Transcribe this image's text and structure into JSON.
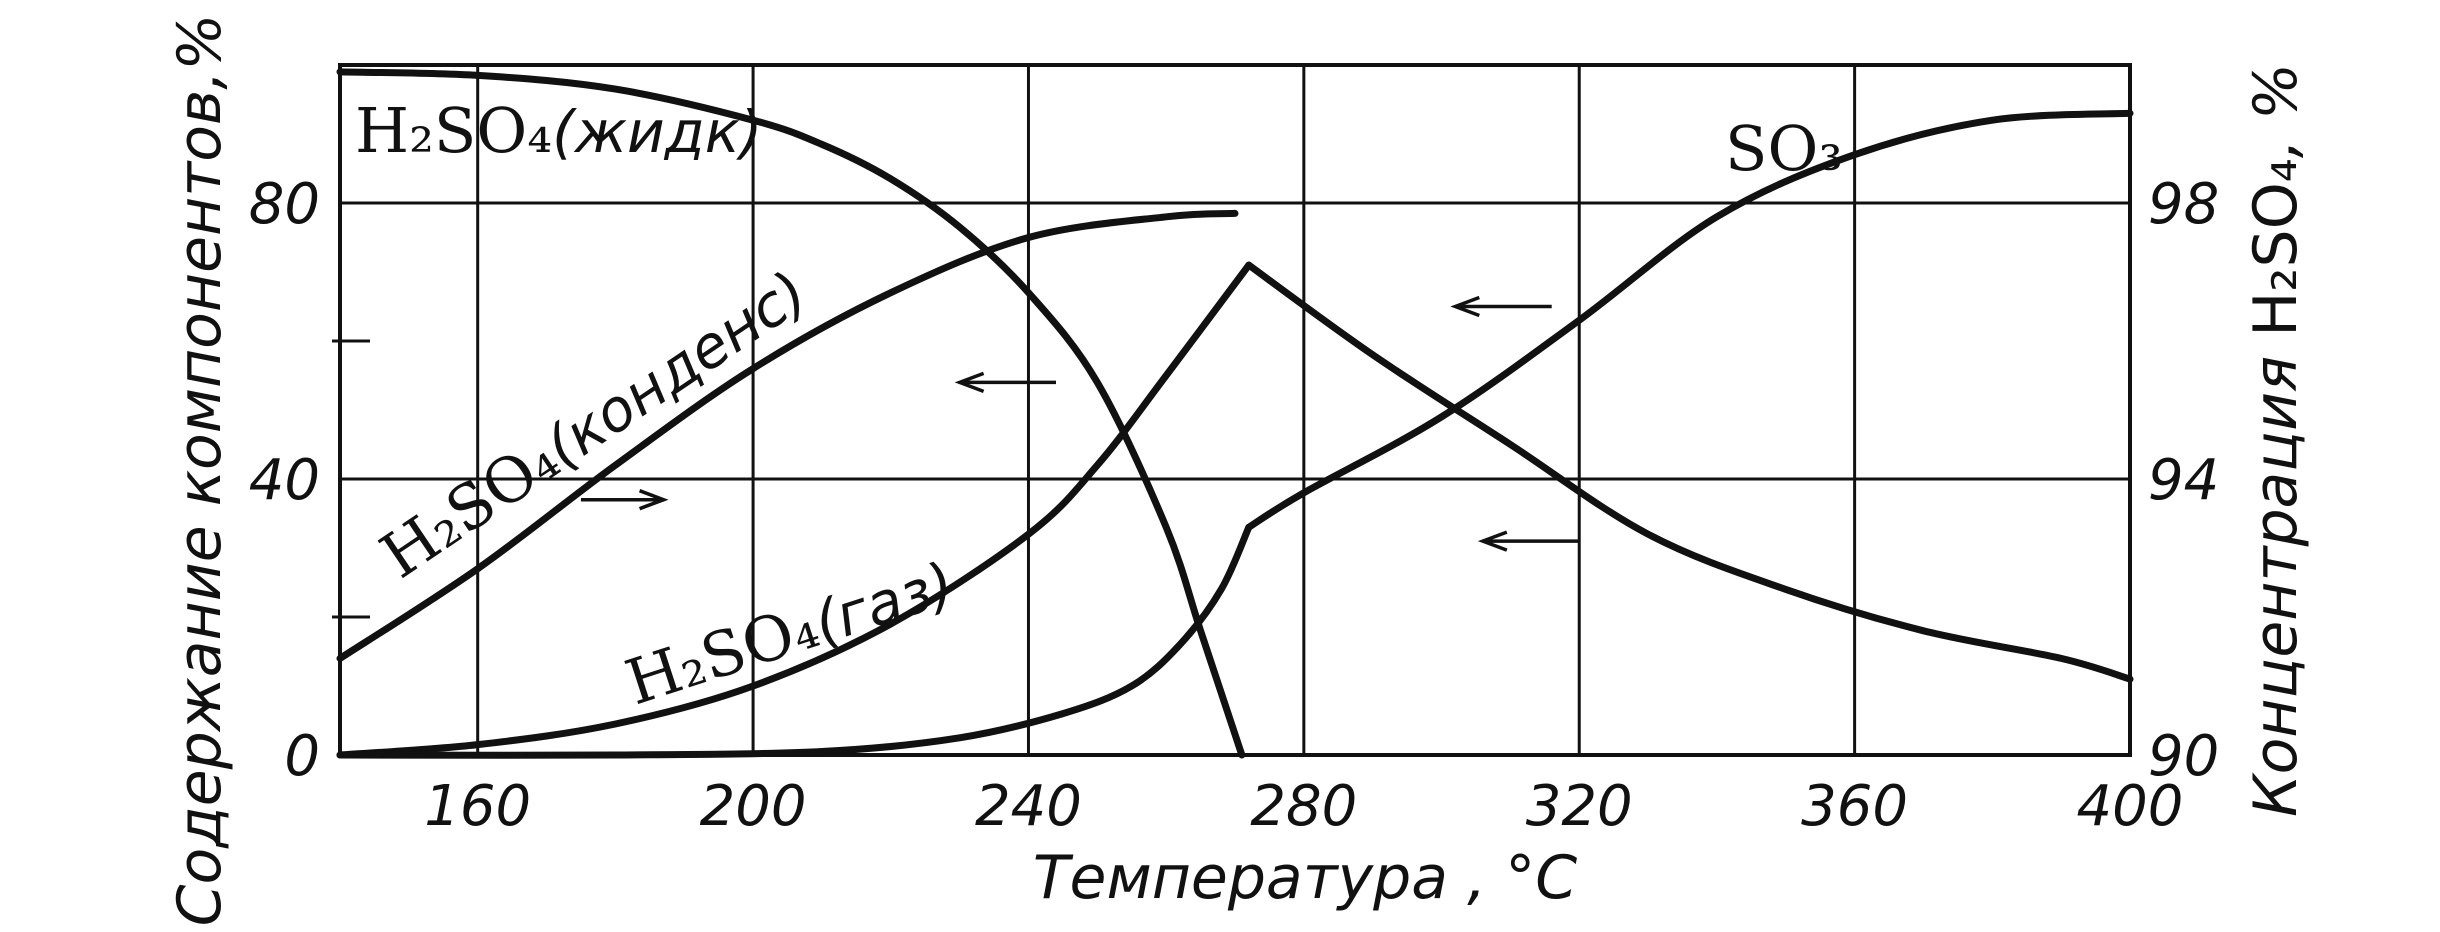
{
  "chart_data": {
    "type": "line",
    "title": "",
    "xlabel": "Температура , °C",
    "ylabel_left": "Содержание компонентов,%",
    "ylabel_right_prefix": "Концентрация ",
    "ylabel_right_formula": "H₂SO₄",
    "ylabel_right_suffix": ", %",
    "xlim": [
      140,
      400
    ],
    "ylim_left": [
      0,
      100
    ],
    "ylim_right": [
      90,
      100
    ],
    "x_ticks": [
      "160",
      "200",
      "240",
      "280",
      "320",
      "360",
      "400"
    ],
    "x_tick_values": [
      160,
      200,
      240,
      280,
      320,
      360,
      400
    ],
    "y_left_ticks": [
      "0",
      "40",
      "80"
    ],
    "y_left_tick_values": [
      0,
      40,
      80
    ],
    "y_right_ticks": [
      "90",
      "94",
      "98"
    ],
    "y_right_tick_values": [
      90,
      94,
      98
    ],
    "grid": true,
    "series": [
      {
        "name": "H₂SO₄(жидк)",
        "axis": "left",
        "x": [
          140,
          160,
          180,
          200,
          210,
          220,
          230,
          240,
          250,
          260,
          265,
          270,
          271
        ],
        "y": [
          99,
          98.5,
          96.5,
          92,
          88.5,
          83.5,
          76.5,
          67,
          54,
          33,
          18,
          3,
          0
        ]
      },
      {
        "name": "H₂SO₄(конденс)",
        "axis": "left",
        "x": [
          140,
          160,
          180,
          200,
          220,
          240,
          260,
          270
        ],
        "y": [
          14,
          27,
          42,
          56,
          67,
          75,
          78,
          78.5
        ]
      },
      {
        "name": "H₂SO₄(газ)",
        "axis": "left",
        "x": [
          140,
          160,
          180,
          200,
          220,
          240,
          250,
          260,
          272,
          290,
          310,
          330,
          350,
          370,
          390,
          400
        ],
        "y": [
          0,
          1.5,
          4.5,
          10,
          19,
          32,
          42,
          55,
          71,
          58,
          45,
          32,
          24,
          18,
          14,
          11
        ]
      },
      {
        "name": "SO₃",
        "axis": "left",
        "x": [
          140,
          180,
          210,
          230,
          245,
          255,
          262,
          268,
          272,
          280,
          300,
          320,
          340,
          360,
          380,
          400
        ],
        "y": [
          0,
          0,
          0.5,
          2.5,
          6,
          10,
          16,
          24,
          33,
          38,
          49,
          63,
          78,
          87,
          92,
          93
        ]
      }
    ],
    "labels": {
      "liquid_formula": "H₂SO₄",
      "liquid_phase": "(жидк)",
      "condensate_formula": "H₂SO₄",
      "condensate_phase": "(конденс)",
      "gas_formula": "H₂SO₄",
      "gas_phase": "(газ)",
      "so3": "SO₃"
    }
  }
}
